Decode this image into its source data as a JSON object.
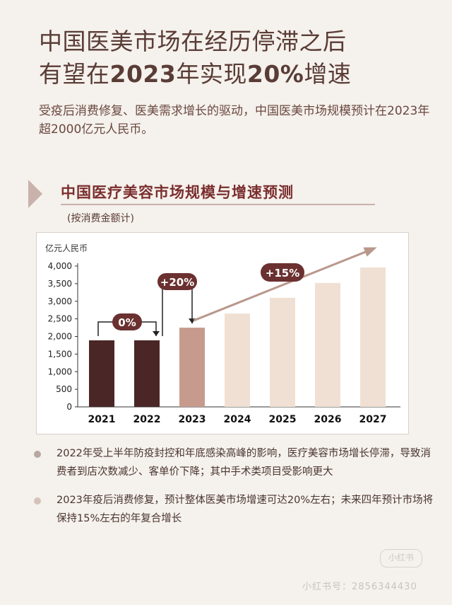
{
  "header": {
    "title_line1": "中国医美市场在经历停滞之后",
    "title_line2_a": "有望在",
    "title_line2_b": "2023",
    "title_line2_c": "年实现",
    "title_line2_d": "20%",
    "title_line2_e": "增速",
    "subtitle": "受疫后消费修复、医美需求增长的驱动，中国医美市场规模预计在2023年超2000亿元人民币。"
  },
  "chart_heading": {
    "title": "中国医疗美容市场规模与增速预测",
    "subtitle": "(按消费金额计)"
  },
  "chart_data": {
    "type": "bar",
    "title": "中国医疗美容市场规模与增速预测",
    "subtitle": "(按消费金额计)",
    "ylabel": "亿元人民币",
    "xlabel": "",
    "categories": [
      "2021",
      "2022",
      "2023",
      "2024",
      "2025",
      "2026",
      "2027"
    ],
    "values": [
      1890,
      1890,
      2250,
      2650,
      3100,
      3520,
      3960
    ],
    "ylim": [
      0,
      4000
    ],
    "yticks": [
      0,
      500,
      1000,
      1500,
      2000,
      2500,
      3000,
      3500,
      4000
    ],
    "ytick_labels": [
      "0",
      "500",
      "1,000",
      "1,500",
      "2,000",
      "2,500",
      "3,000",
      "3,500",
      "4,000"
    ],
    "bar_colors": [
      "#4a2626",
      "#4a2626",
      "#c69b8d",
      "#f0e0d3",
      "#f0e0d3",
      "#f0e0d3",
      "#f0e0d3"
    ],
    "annotations": [
      {
        "label": "0%",
        "type": "bracket",
        "from": "2021",
        "to": "2022"
      },
      {
        "label": "+20%",
        "type": "bracket",
        "from": "2022",
        "to": "2023"
      },
      {
        "label": "+15%",
        "type": "arrow",
        "from": "2023",
        "to": "2027"
      }
    ],
    "grid": false
  },
  "bullets": [
    {
      "text": "2022年受上半年防疫封控和年底感染高峰的影响，医疗美容市场增长停滞，导致消费者到店次数减少、客单价下降；其中手术类项目受影响更大",
      "color": "#b8a8a2"
    },
    {
      "text": "2023年疫后消费修复，预计整体医美市场增速可达20%左右；未来四年预计市场将保持15%左右的年复合增长",
      "color": "#d5c2ba"
    }
  ],
  "watermark": {
    "logo": "小红书",
    "id": "小红书号：2856344430"
  },
  "colors": {
    "title": "#5a3c36",
    "accent_dark": "#4a2626",
    "accent_mid": "#c69b8d",
    "accent_light": "#f0e0d3",
    "annotation_fill": "#6b3030",
    "arrow": "#b9988c"
  }
}
